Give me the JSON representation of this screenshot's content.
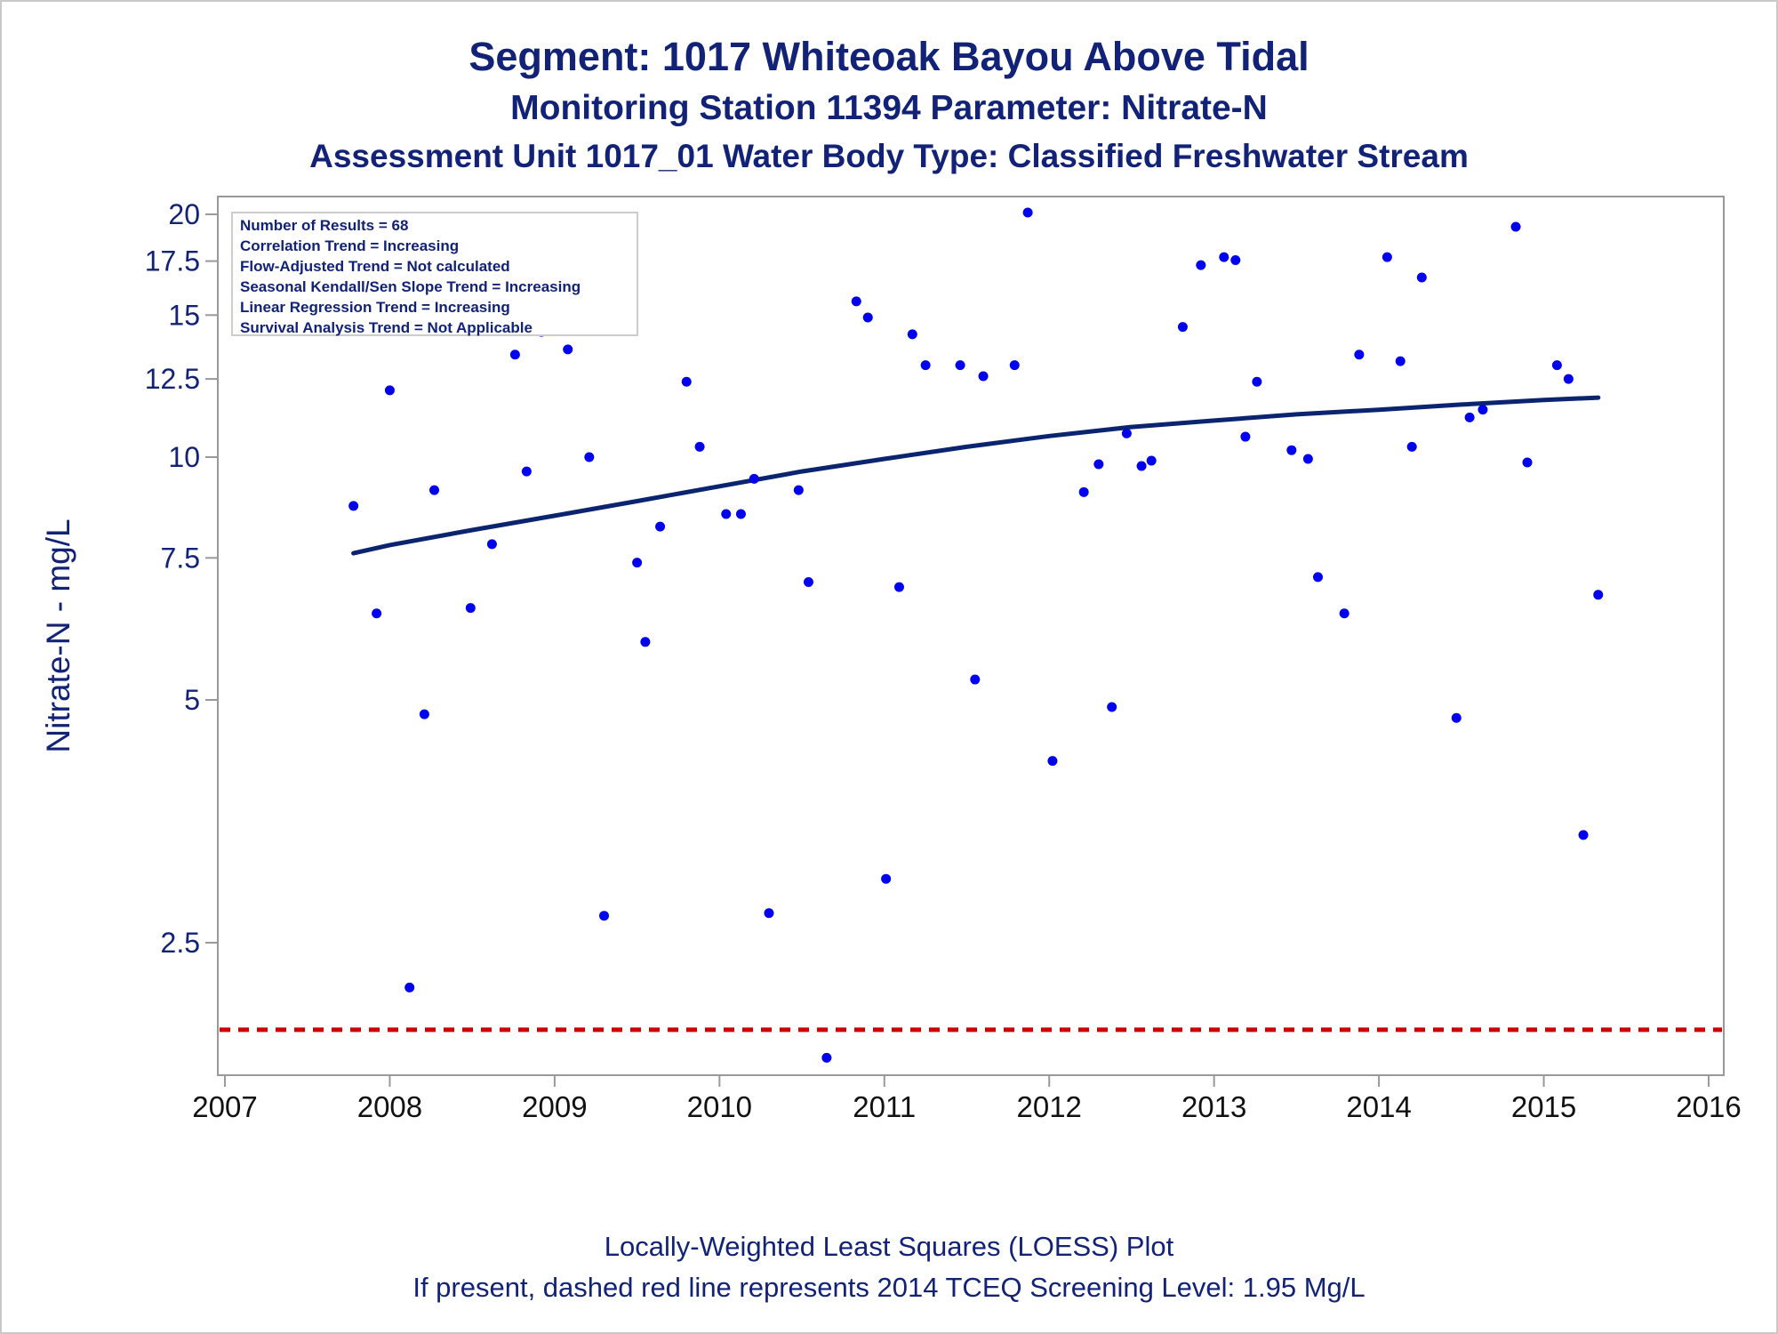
{
  "titles": {
    "line1": "Segment: 1017  Whiteoak Bayou Above Tidal",
    "line2": "Monitoring Station 11394 Parameter: Nitrate-N",
    "line3": "Assessment Unit 1017_01   Water Body Type: Classified Freshwater Stream"
  },
  "footnotes": {
    "line1": "Locally-Weighted Least Squares (LOESS) Plot",
    "line2": "If present, dashed red line represents 2014 TCEQ Screening Level: 1.95 Mg/L"
  },
  "stats": [
    "Number of Results = 68",
    "Correlation Trend = Increasing",
    "Flow-Adjusted Trend = Not calculated",
    "Seasonal Kendall/Sen Slope Trend = Increasing",
    "Linear Regression Trend = Increasing",
    "Survival Analysis Trend = Not Applicable"
  ],
  "colors": {
    "text": "#112277",
    "points": "#0000ee",
    "trend": "#0a2470",
    "screening": "#cc0000",
    "axis": "#999999"
  },
  "chart_data": {
    "type": "scatter",
    "title": "Segment: 1017  Whiteoak Bayou Above Tidal",
    "xlabel": "",
    "ylabel": "Nitrate-N - mg/L",
    "y_scale": "log",
    "xlim": [
      2007,
      2016
    ],
    "ylim": [
      1.68,
      20.2
    ],
    "x_ticks": [
      2007,
      2008,
      2009,
      2010,
      2011,
      2012,
      2013,
      2014,
      2015,
      2016
    ],
    "y_ticks": [
      2.5,
      5,
      7.5,
      10,
      12.5,
      15,
      17.5,
      20
    ],
    "y_tick_labels": [
      "2.5",
      "5",
      "7.5",
      "10",
      "12.5",
      "15",
      "17.5",
      "20"
    ],
    "series": [
      {
        "x": [
          2007.78,
          2007.92,
          2008.0,
          2008.12,
          2008.21,
          2008.27,
          2008.49,
          2008.62,
          2008.76,
          2008.83,
          2008.92,
          2009.08,
          2009.21,
          2009.3,
          2009.5,
          2009.55,
          2009.64,
          2009.8,
          2009.88,
          2010.04,
          2010.13,
          2010.21,
          2010.3,
          2010.48,
          2010.54,
          2010.65,
          2010.83,
          2010.9,
          2011.01,
          2011.09,
          2011.17,
          2011.25,
          2011.46,
          2011.55,
          2011.6,
          2011.79,
          2011.87,
          2012.02,
          2012.21,
          2012.3,
          2012.38,
          2012.47,
          2012.56,
          2012.62,
          2012.81,
          2012.92,
          2013.06,
          2013.13,
          2013.19,
          2013.26,
          2013.47,
          2013.57,
          2013.63,
          2013.79,
          2013.88,
          2014.05,
          2014.13,
          2014.2,
          2014.26,
          2014.47,
          2014.55,
          2014.63,
          2014.83,
          2014.9,
          2015.08,
          2015.15,
          2015.24,
          2015.33
        ],
        "y": [
          8.7,
          6.4,
          12.1,
          2.2,
          4.8,
          9.1,
          6.5,
          7.8,
          13.4,
          9.6,
          14.3,
          13.6,
          10.0,
          2.7,
          7.4,
          5.9,
          8.2,
          12.4,
          10.3,
          8.5,
          8.5,
          9.4,
          2.72,
          9.1,
          7.0,
          1.8,
          15.6,
          14.9,
          3.0,
          6.9,
          14.2,
          13.0,
          13.0,
          5.3,
          12.6,
          13.0,
          20.1,
          4.2,
          9.05,
          9.8,
          4.9,
          10.7,
          9.75,
          9.9,
          14.5,
          17.3,
          17.7,
          17.55,
          10.6,
          12.4,
          10.2,
          9.95,
          7.1,
          6.4,
          13.4,
          17.7,
          13.15,
          10.3,
          16.7,
          4.75,
          11.2,
          11.45,
          19.3,
          9.85,
          13.0,
          12.5,
          3.4,
          6.75
        ]
      },
      {
        "x": [
          2007.78,
          2008.0,
          2008.5,
          2009.0,
          2009.5,
          2010.0,
          2010.5,
          2011.0,
          2011.5,
          2012.0,
          2012.5,
          2013.0,
          2013.5,
          2014.0,
          2014.5,
          2015.0,
          2015.33
        ],
        "y": [
          7.6,
          7.78,
          8.12,
          8.46,
          8.82,
          9.2,
          9.6,
          9.95,
          10.3,
          10.62,
          10.9,
          11.1,
          11.3,
          11.45,
          11.62,
          11.77,
          11.85
        ]
      }
    ],
    "screening_level": 1.95
  }
}
